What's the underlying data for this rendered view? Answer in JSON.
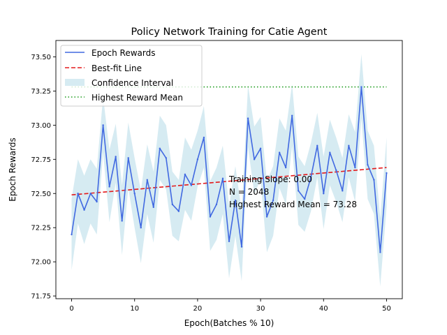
{
  "chart_data": {
    "type": "line",
    "title": "Policy Network Training for Catie Agent",
    "xlabel": "Epoch(Batches % 10)",
    "ylabel": "Epoch Rewards",
    "xlim": [
      -2.5,
      52.5
    ],
    "ylim": [
      71.73,
      73.62
    ],
    "xticks": [
      0,
      10,
      20,
      30,
      40,
      50
    ],
    "yticks": [
      71.75,
      72.0,
      72.25,
      72.5,
      72.75,
      73.0,
      73.25,
      73.5
    ],
    "xtick_labels": [
      "0",
      "10",
      "20",
      "30",
      "40",
      "50"
    ],
    "ytick_labels": [
      "71.75",
      "72.00",
      "72.25",
      "72.50",
      "72.75",
      "73.00",
      "73.25",
      "73.50"
    ],
    "grid": false,
    "legend_position": "upper-left",
    "colors": {
      "epoch_rewards": "#4169e1",
      "best_fit": "#e31a1c",
      "confidence": "#add8e6",
      "highest_mean": "#1a9a1a"
    },
    "x": [
      0,
      1,
      2,
      3,
      4,
      5,
      6,
      7,
      8,
      9,
      10,
      11,
      12,
      13,
      14,
      15,
      16,
      17,
      18,
      19,
      20,
      21,
      22,
      23,
      24,
      25,
      26,
      27,
      28,
      29,
      30,
      31,
      32,
      33,
      34,
      35,
      36,
      37,
      38,
      39,
      40,
      41,
      42,
      43,
      44,
      45,
      46,
      47,
      48,
      49,
      50
    ],
    "series": [
      {
        "name": "Epoch Rewards",
        "style": "solid",
        "values": [
          72.2,
          72.5,
          72.38,
          72.5,
          72.44,
          73.0,
          72.55,
          72.77,
          72.3,
          72.76,
          72.5,
          72.25,
          72.6,
          72.4,
          72.83,
          72.76,
          72.42,
          72.37,
          72.64,
          72.56,
          72.75,
          72.91,
          72.33,
          72.42,
          72.61,
          72.15,
          72.45,
          72.11,
          73.05,
          72.75,
          72.83,
          72.33,
          72.45,
          72.8,
          72.69,
          73.07,
          72.52,
          72.46,
          72.62,
          72.85,
          72.5,
          72.8,
          72.67,
          72.52,
          72.85,
          72.69,
          73.28,
          72.71,
          72.6,
          72.07,
          72.65
        ]
      },
      {
        "name": "Best-fit Line",
        "style": "dashed",
        "x": [
          0,
          50
        ],
        "values": [
          72.49,
          72.69
        ]
      },
      {
        "name": "Confidence Interval",
        "style": "band",
        "lower": [
          71.94,
          72.28,
          72.13,
          72.28,
          72.2,
          72.8,
          72.29,
          72.58,
          72.05,
          72.54,
          72.25,
          71.99,
          72.35,
          72.14,
          72.6,
          72.53,
          72.19,
          72.15,
          72.38,
          72.3,
          72.55,
          72.69,
          72.08,
          72.16,
          72.35,
          71.88,
          72.19,
          71.86,
          72.84,
          72.5,
          72.6,
          72.07,
          72.19,
          72.54,
          72.42,
          72.85,
          72.27,
          72.22,
          72.37,
          72.62,
          72.24,
          72.56,
          72.44,
          72.29,
          72.62,
          72.44,
          73.05,
          72.46,
          72.35,
          71.82,
          72.4
        ],
        "upper": [
          72.46,
          72.75,
          72.63,
          72.75,
          72.68,
          73.21,
          72.82,
          73.01,
          72.56,
          73.02,
          72.76,
          72.52,
          72.86,
          72.66,
          73.07,
          73.0,
          72.66,
          72.6,
          72.91,
          72.82,
          72.96,
          73.14,
          72.59,
          72.69,
          72.85,
          72.41,
          72.7,
          72.37,
          73.29,
          72.99,
          73.06,
          72.59,
          72.7,
          73.05,
          72.96,
          73.3,
          72.77,
          72.7,
          72.87,
          73.09,
          72.77,
          73.04,
          72.91,
          72.76,
          73.08,
          72.95,
          73.52,
          72.96,
          72.85,
          72.32,
          72.91
        ]
      },
      {
        "name": "Highest Reward Mean",
        "style": "dotted",
        "x": [
          0,
          50
        ],
        "values": [
          73.28,
          73.28
        ]
      }
    ],
    "annotations": [
      "Training Slope: 0.00",
      "N = 2048",
      "Highest Reward Mean = 73.28"
    ]
  }
}
